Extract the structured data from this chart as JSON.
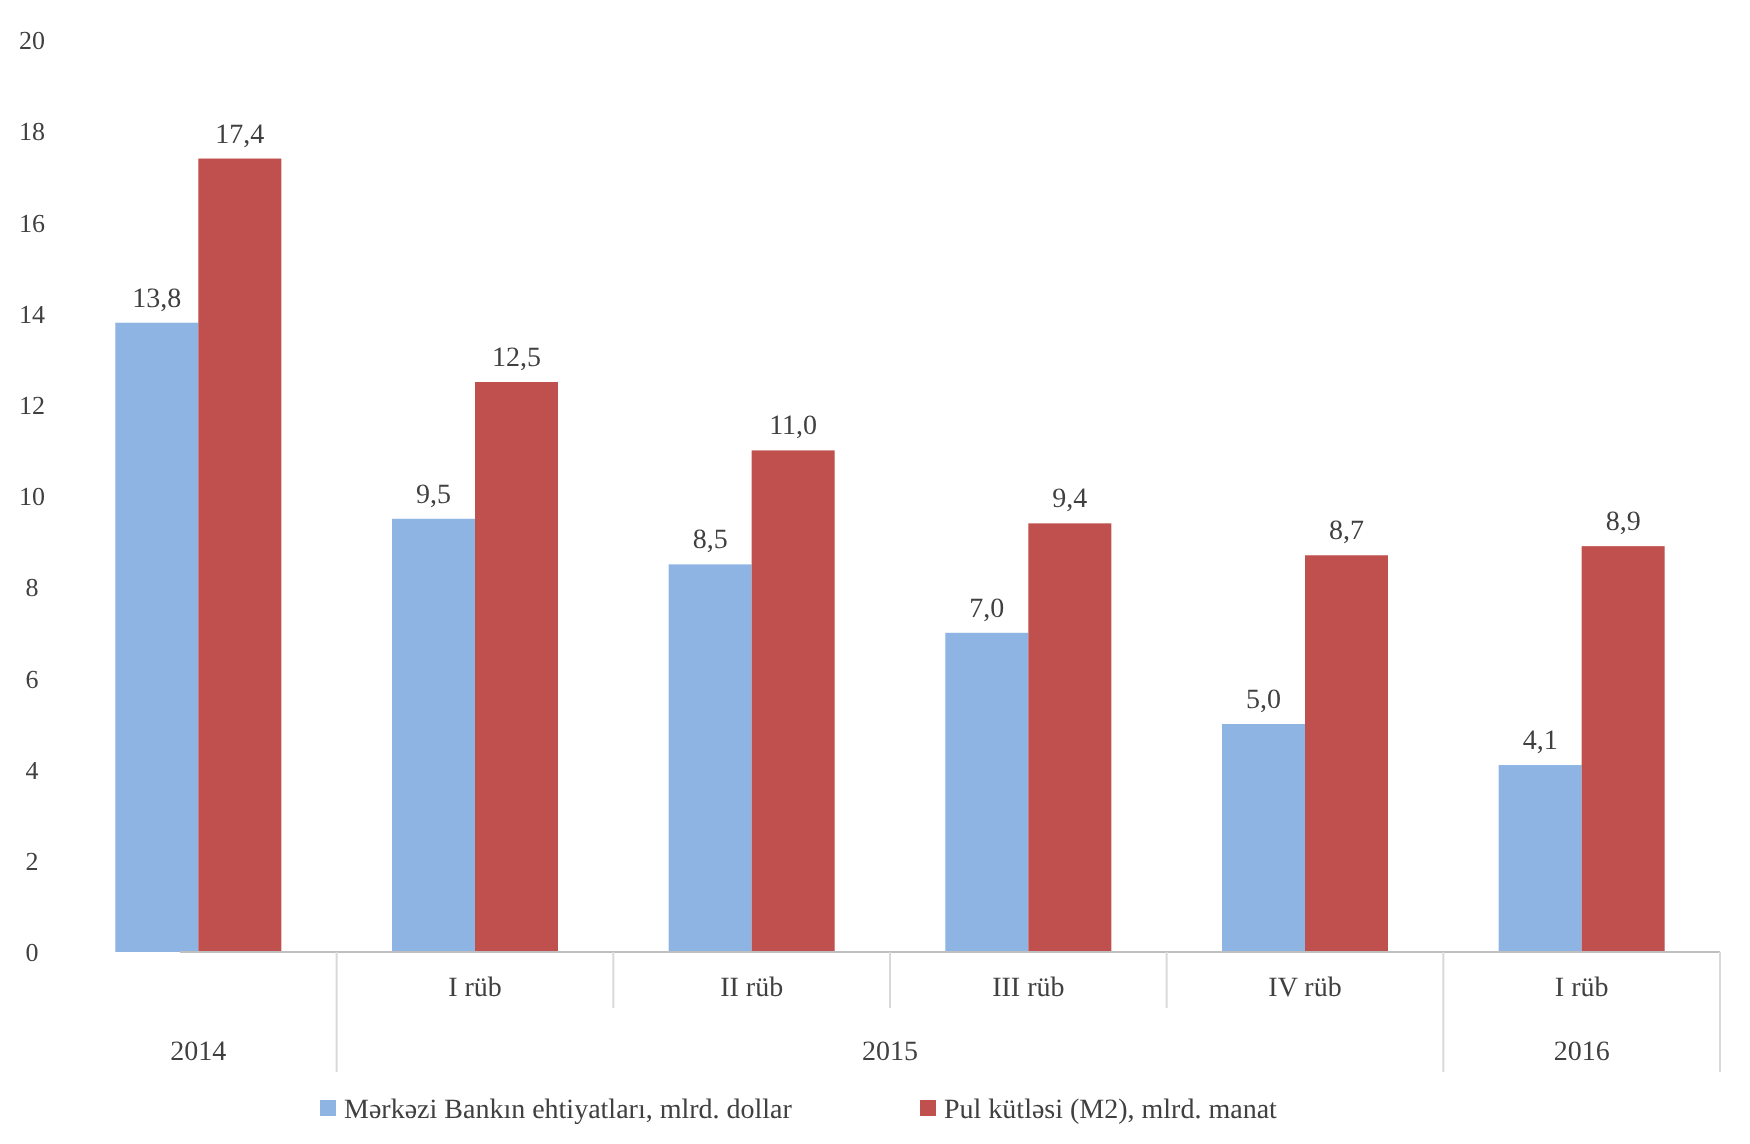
{
  "chart_data": {
    "type": "bar",
    "categories": [
      null,
      "I rüb",
      "II rüb",
      "III rüb",
      "IV rüb",
      "I rüb"
    ],
    "series": [
      {
        "name": "Mərkəzi Bankın ehtiyatları, mlrd. dollar",
        "color": "#8eb4e3",
        "values": [
          13.8,
          9.5,
          8.5,
          7.0,
          5.0,
          4.1
        ],
        "value_labels": [
          "13,8",
          "9,5",
          "8,5",
          "7,0",
          "5,0",
          "4,1"
        ]
      },
      {
        "name": "Pul kütləsi (M2), mlrd. manat",
        "color": "#c0504d",
        "values": [
          17.4,
          12.5,
          11.0,
          9.4,
          8.7,
          8.9
        ],
        "value_labels": [
          "17,4",
          "12,5",
          "11,0",
          "9,4",
          "8,7",
          "8,9"
        ]
      }
    ],
    "ylim": [
      0,
      20
    ],
    "yticks": [
      0,
      2,
      4,
      6,
      8,
      10,
      12,
      14,
      16,
      18,
      20
    ],
    "grid": false,
    "legend": "bottom",
    "annotations": [
      "2014",
      "2015",
      "2016"
    ]
  }
}
